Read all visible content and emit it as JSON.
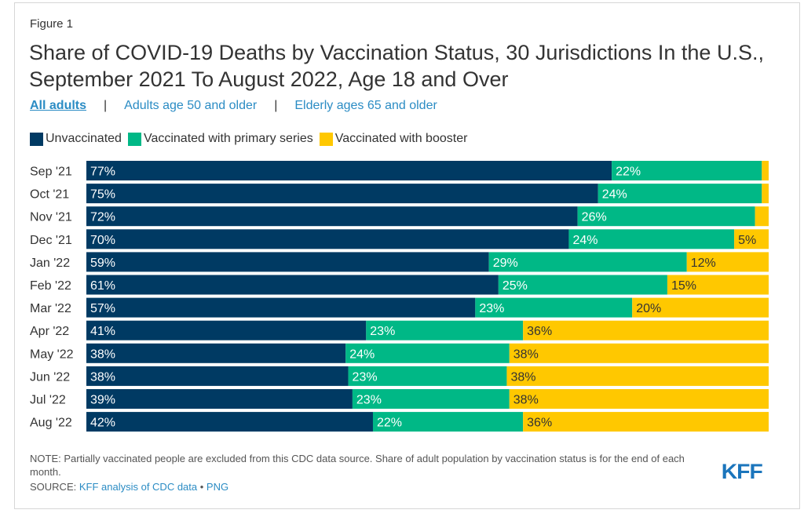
{
  "figure_label": "Figure 1",
  "title": "Share of COVID-19 Deaths by Vaccination Status, 30 Jurisdictions In the U.S., September 2021 To August 2022, Age 18 and Over",
  "tabs": [
    {
      "label": "All adults",
      "active": true
    },
    {
      "label": "Adults age 50 and older",
      "active": false
    },
    {
      "label": "Elderly ages 65 and older",
      "active": false
    }
  ],
  "tab_separator": "|",
  "colors": {
    "unvaccinated": "#003a63",
    "primary": "#00b886",
    "booster": "#ffc800",
    "link": "#2b8cc4",
    "logo": "#1b75bc"
  },
  "chart_data": {
    "type": "bar",
    "orientation": "horizontal",
    "stacked": true,
    "normalized": true,
    "title": "Share of COVID-19 Deaths by Vaccination Status, 30 Jurisdictions In the U.S., September 2021 To August 2022, Age 18 and Over",
    "xlabel": "",
    "ylabel": "",
    "legend": "top-left",
    "grid": false,
    "categories": [
      "Sep '21",
      "Oct '21",
      "Nov '21",
      "Dec '21",
      "Jan '22",
      "Feb '22",
      "Mar '22",
      "Apr '22",
      "May '22",
      "Jun '22",
      "Jul '22",
      "Aug '22"
    ],
    "series": [
      {
        "name": "Unvaccinated",
        "values": [
          77,
          75,
          72,
          70,
          59,
          61,
          57,
          41,
          38,
          38,
          39,
          42
        ],
        "labels": [
          "77%",
          "75%",
          "72%",
          "70%",
          "59%",
          "61%",
          "57%",
          "41%",
          "38%",
          "38%",
          "39%",
          "42%"
        ]
      },
      {
        "name": "Vaccinated with primary series",
        "values": [
          22,
          24,
          26,
          24,
          29,
          25,
          23,
          23,
          24,
          23,
          23,
          22
        ],
        "labels": [
          "22%",
          "24%",
          "26%",
          "24%",
          "29%",
          "25%",
          "23%",
          "23%",
          "24%",
          "23%",
          "23%",
          "22%"
        ]
      },
      {
        "name": "Vaccinated with booster",
        "values": [
          1,
          1,
          2,
          5,
          12,
          15,
          20,
          36,
          38,
          38,
          38,
          36
        ],
        "labels": [
          "",
          "",
          "",
          "5%",
          "12%",
          "15%",
          "20%",
          "36%",
          "38%",
          "38%",
          "38%",
          "36%"
        ]
      }
    ]
  },
  "footer": {
    "note": "NOTE: Partially vaccinated people are excluded from this CDC data source. Share of adult population by vaccination status is for the end of each month.",
    "source_prefix": "SOURCE: ",
    "source_link": "KFF analysis of CDC data",
    "bullet": " • ",
    "png_link": "PNG",
    "logo": "KFF"
  }
}
